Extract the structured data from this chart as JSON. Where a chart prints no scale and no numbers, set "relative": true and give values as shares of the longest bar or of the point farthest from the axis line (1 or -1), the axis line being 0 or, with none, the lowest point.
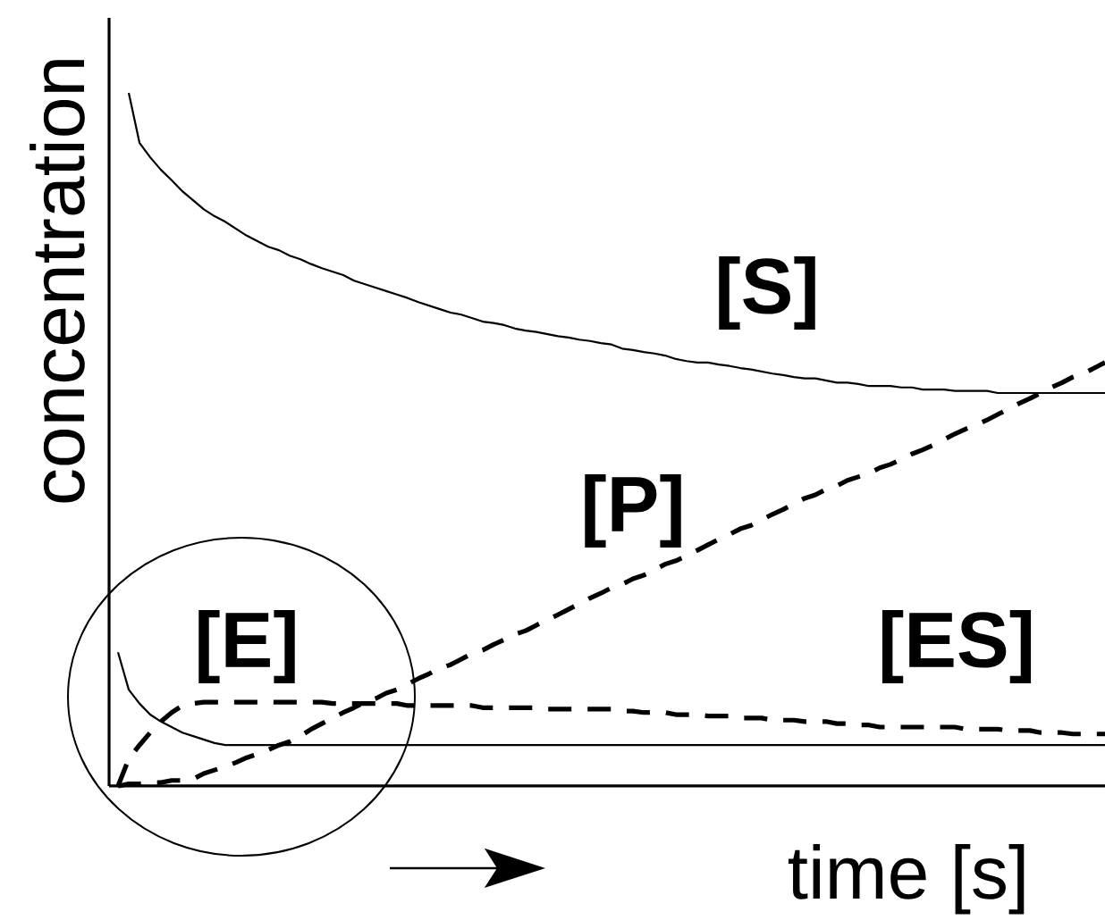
{
  "chart_data": {
    "type": "line",
    "xlabel": "time [s]",
    "ylabel": "concentration",
    "relative": true,
    "categories": [
      null,
      null,
      null,
      null,
      null,
      null,
      null,
      null,
      null,
      null,
      null,
      null,
      null,
      null,
      null,
      null,
      null,
      null,
      null,
      null,
      null,
      null,
      null,
      null,
      null,
      null,
      null,
      null,
      null,
      null,
      null,
      null,
      null,
      null,
      null,
      null,
      null,
      null,
      null,
      null,
      null,
      null,
      null,
      null,
      null,
      null,
      null,
      null,
      null,
      null,
      null,
      null,
      null,
      null,
      null,
      null,
      null,
      null,
      null,
      null,
      null,
      null,
      null,
      null,
      null,
      null,
      null,
      null,
      null,
      null,
      null,
      null,
      null,
      null,
      null,
      null,
      null,
      null,
      null,
      null,
      null,
      null,
      null,
      null,
      null,
      null,
      null,
      null,
      null,
      null,
      null,
      null,
      null
    ],
    "series": [
      {
        "name": "[S]",
        "color": "#000000",
        "line_style": "solid",
        "values": [
          null,
          1,
          0.928,
          0.907,
          0.889,
          0.874,
          0.858,
          0.845,
          0.832,
          0.822,
          0.814,
          0.804,
          0.794,
          0.786,
          0.778,
          0.773,
          0.765,
          0.76,
          0.753,
          0.747,
          0.742,
          0.737,
          0.729,
          0.724,
          0.719,
          0.714,
          0.709,
          0.704,
          0.698,
          0.693,
          0.688,
          0.683,
          0.68,
          0.675,
          0.67,
          0.668,
          0.665,
          0.66,
          0.657,
          0.655,
          0.652,
          0.649,
          0.647,
          0.644,
          0.642,
          0.639,
          0.637,
          0.631,
          0.629,
          0.626,
          0.624,
          0.621,
          0.616,
          0.613,
          0.611,
          0.611,
          0.608,
          0.606,
          0.603,
          0.601,
          0.598,
          0.595,
          0.593,
          0.59,
          0.588,
          0.588,
          0.585,
          0.582,
          0.582,
          0.58,
          0.577,
          0.577,
          0.577,
          0.575,
          0.575,
          0.572,
          0.572,
          0.572,
          0.57,
          0.57,
          0.57,
          0.57,
          0.567,
          0.567,
          0.567,
          0.567,
          0.567,
          0.567,
          0.567,
          0.567,
          0.567,
          0.567,
          0.567
        ]
      },
      {
        "name": "[P]",
        "color": "#000000",
        "line_style": "dashed",
        "values": [
          0,
          0.003,
          0.003,
          0.005,
          0.005,
          0.008,
          0.008,
          0.01,
          0.018,
          0.023,
          0.028,
          0.034,
          0.041,
          0.046,
          0.052,
          0.059,
          0.064,
          0.072,
          0.082,
          0.09,
          0.098,
          0.106,
          0.113,
          0.121,
          0.126,
          0.134,
          0.139,
          0.147,
          0.155,
          0.162,
          0.17,
          0.175,
          0.183,
          0.191,
          0.196,
          0.204,
          0.211,
          0.219,
          0.224,
          0.232,
          0.24,
          0.247,
          0.255,
          0.263,
          0.271,
          0.278,
          0.286,
          0.291,
          0.299,
          0.304,
          0.312,
          0.32,
          0.325,
          0.332,
          0.34,
          0.348,
          0.356,
          0.363,
          0.371,
          0.376,
          0.384,
          0.392,
          0.399,
          0.407,
          0.415,
          0.42,
          0.428,
          0.433,
          0.441,
          0.446,
          0.451,
          0.459,
          0.464,
          0.471,
          0.479,
          0.485,
          0.492,
          0.5,
          0.508,
          0.515,
          0.521,
          0.528,
          0.536,
          0.544,
          0.552,
          0.559,
          0.567,
          0.575,
          0.582,
          0.59,
          0.595,
          0.603,
          0.611
        ]
      },
      {
        "name": "[E]",
        "color": "#000000",
        "line_style": "solid",
        "values": [
          0.193,
          0.139,
          0.119,
          0.103,
          0.093,
          0.085,
          0.077,
          0.072,
          0.067,
          0.062,
          0.059,
          0.059,
          0.059,
          0.059,
          0.059,
          0.059,
          0.059,
          0.059,
          0.059,
          0.059,
          0.059,
          0.059,
          0.059,
          0.059,
          0.059,
          0.059,
          0.059,
          0.059,
          0.059,
          0.059,
          0.059,
          0.059,
          0.059,
          0.059,
          0.059,
          0.059,
          0.059,
          0.059,
          0.059,
          0.059,
          0.059,
          0.059,
          0.059,
          0.059,
          0.059,
          0.059,
          0.059,
          0.059,
          0.059,
          0.059,
          0.059,
          0.059,
          0.059,
          0.059,
          0.059,
          0.059,
          0.059,
          0.059,
          0.059,
          0.059,
          0.059,
          0.059,
          0.059,
          0.059,
          0.059,
          0.059,
          0.059,
          0.059,
          0.059,
          0.059,
          0.059,
          0.059,
          0.059,
          0.059,
          0.059,
          0.059,
          0.059,
          0.059,
          0.059,
          0.059,
          0.059,
          0.059,
          0.059,
          0.059,
          0.059,
          0.059,
          0.059,
          0.059,
          0.059,
          0.059,
          0.059,
          0.059,
          0.059
        ]
      },
      {
        "name": "[ES]",
        "color": "#000000",
        "line_style": "dashed",
        "values": [
          0,
          0.039,
          0.059,
          0.077,
          0.093,
          0.106,
          0.116,
          0.119,
          0.121,
          0.121,
          0.121,
          0.121,
          0.121,
          0.121,
          0.121,
          0.121,
          0.121,
          0.121,
          0.121,
          0.121,
          0.119,
          0.119,
          0.119,
          0.119,
          0.119,
          0.119,
          0.119,
          0.116,
          0.116,
          0.116,
          0.116,
          0.116,
          0.116,
          0.116,
          0.113,
          0.113,
          0.113,
          0.113,
          0.113,
          0.113,
          0.111,
          0.111,
          0.111,
          0.111,
          0.111,
          0.111,
          0.111,
          0.108,
          0.108,
          0.106,
          0.106,
          0.106,
          0.103,
          0.103,
          0.103,
          0.101,
          0.101,
          0.101,
          0.098,
          0.098,
          0.098,
          0.095,
          0.095,
          0.095,
          0.093,
          0.093,
          0.093,
          0.09,
          0.09,
          0.088,
          0.088,
          0.085,
          0.085,
          0.085,
          0.085,
          0.085,
          0.085,
          0.085,
          0.085,
          0.082,
          0.082,
          0.082,
          0.082,
          0.08,
          0.08,
          0.08,
          0.077,
          0.077,
          0.077,
          0.075,
          0.075,
          0.075,
          0.075
        ]
      }
    ]
  }
}
